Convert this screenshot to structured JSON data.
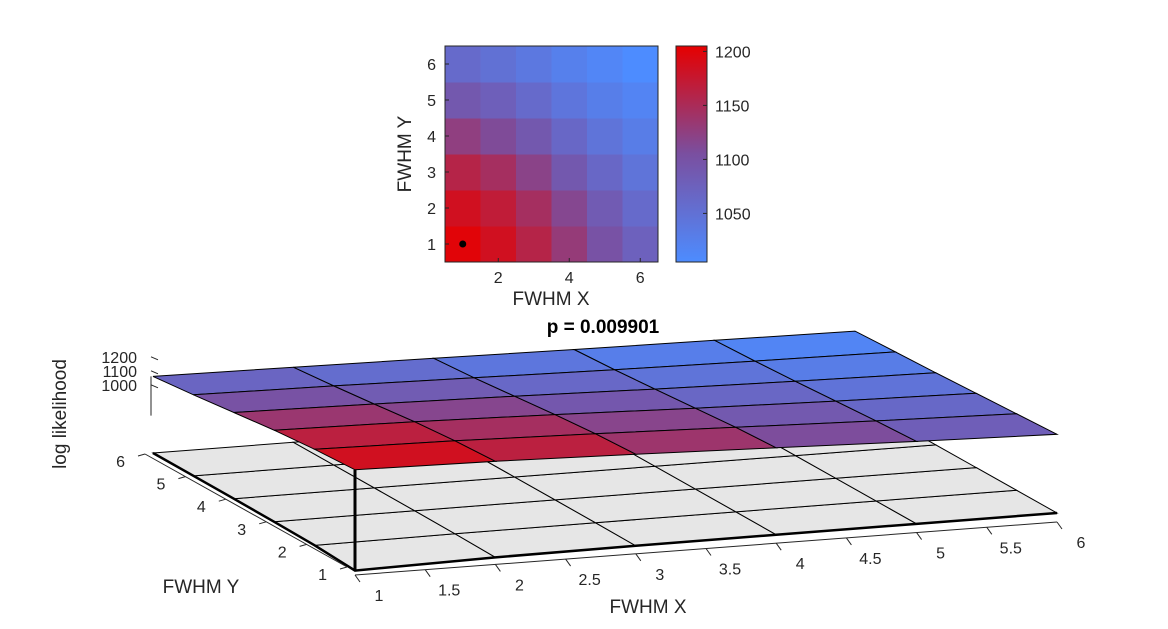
{
  "colors": {
    "high": "#e60000",
    "low": "#4d8cff",
    "floor": "#e6e6e6"
  },
  "chart_data": [
    {
      "type": "heatmap",
      "xlabel": "FWHM X",
      "ylabel": "FWHM Y",
      "xlim": [
        0.5,
        6.5
      ],
      "ylim": [
        0.5,
        6.5
      ],
      "xticks": [
        "2",
        "4",
        "6"
      ],
      "yticks": [
        "1",
        "2",
        "3",
        "4",
        "5",
        "6"
      ],
      "colorbar": {
        "ticks": [
          "1050",
          "1100",
          "1150",
          "1200"
        ],
        "range": [
          1005,
          1205
        ]
      },
      "x": [
        1,
        2,
        3,
        4,
        5,
        6
      ],
      "y": [
        1,
        2,
        3,
        4,
        5,
        6
      ],
      "values": [
        [
          1200,
          1185,
          1160,
          1130,
          1100,
          1075
        ],
        [
          1185,
          1170,
          1145,
          1115,
          1085,
          1060
        ],
        [
          1160,
          1145,
          1120,
          1090,
          1065,
          1045
        ],
        [
          1125,
          1110,
          1090,
          1065,
          1045,
          1030
        ],
        [
          1090,
          1078,
          1060,
          1042,
          1028,
          1018
        ],
        [
          1060,
          1050,
          1038,
          1025,
          1015,
          1005
        ]
      ],
      "marker": {
        "x": 1,
        "y": 1
      }
    },
    {
      "type": "surface",
      "title": "p = 0.009901",
      "xlabel": "FWHM X",
      "ylabel": "FWHM Y",
      "zlabel": "log likelihood",
      "xticks": [
        "1",
        "1.5",
        "2",
        "2.5",
        "3",
        "3.5",
        "4",
        "4.5",
        "5",
        "5.5",
        "6"
      ],
      "yticks": [
        "1",
        "2",
        "3",
        "4",
        "5",
        "6"
      ],
      "zticks": [
        "1000",
        "1100",
        "1200"
      ],
      "x": [
        1,
        2,
        3,
        4,
        5,
        6
      ],
      "y": [
        1,
        2,
        3,
        4,
        5,
        6
      ],
      "values": [
        [
          1200,
          1185,
          1160,
          1130,
          1100,
          1075
        ],
        [
          1185,
          1170,
          1145,
          1115,
          1085,
          1060
        ],
        [
          1160,
          1145,
          1120,
          1090,
          1065,
          1045
        ],
        [
          1125,
          1110,
          1090,
          1065,
          1045,
          1030
        ],
        [
          1090,
          1078,
          1060,
          1042,
          1028,
          1018
        ],
        [
          1060,
          1050,
          1038,
          1025,
          1015,
          1005
        ]
      ],
      "maximum": {
        "x": 1,
        "y": 1
      }
    }
  ]
}
